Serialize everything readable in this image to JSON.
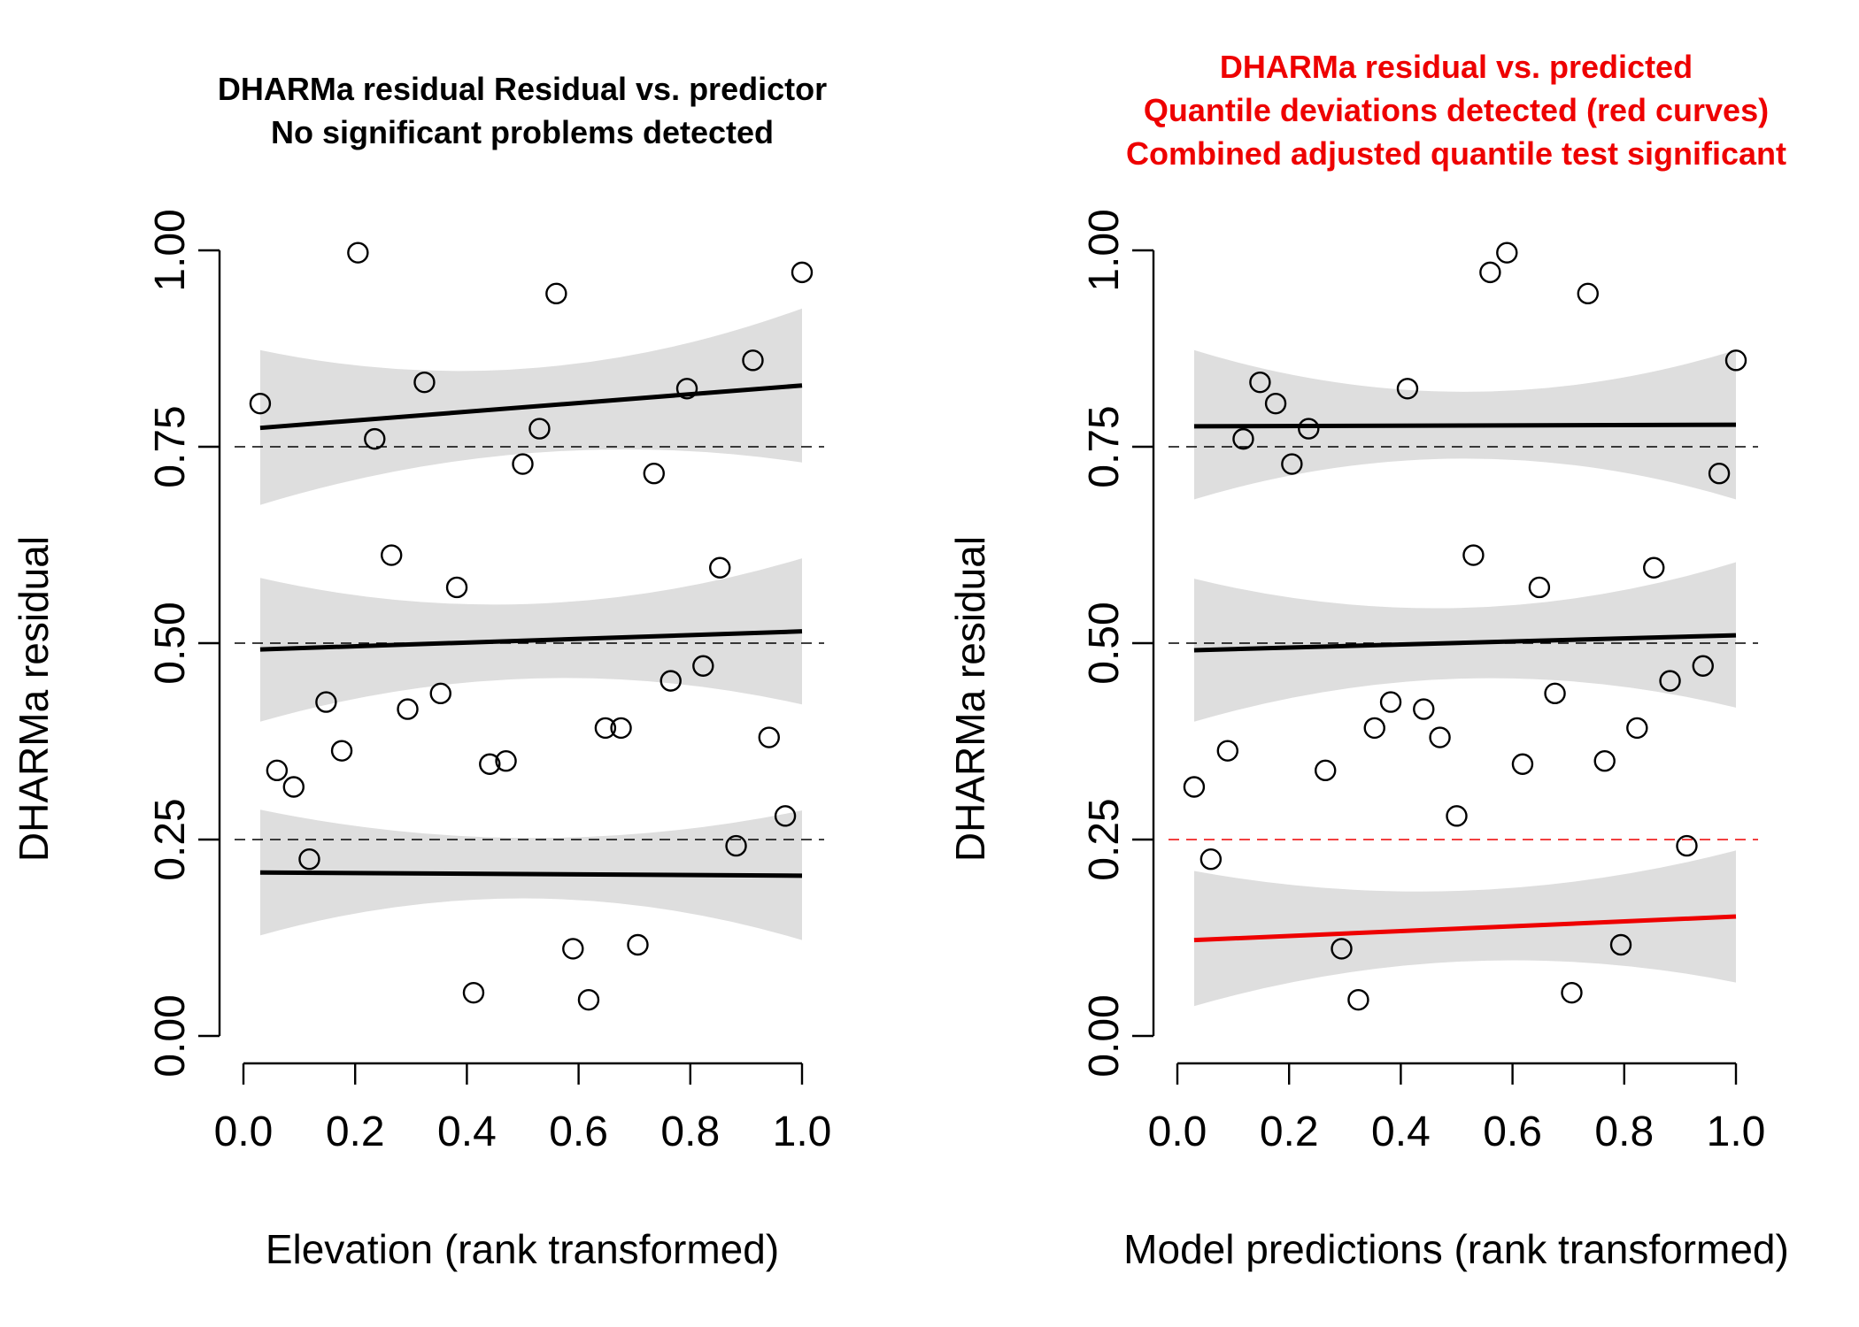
{
  "chart_data": [
    {
      "type": "scatter",
      "title": [
        "DHARMa residual Residual vs. predictor",
        "No significant problems detected"
      ],
      "title_color": "#000000",
      "xlabel": "Elevation (rank transformed)",
      "ylabel": "DHARMa residual",
      "xlim": [
        0,
        1
      ],
      "ylim": [
        0,
        1
      ],
      "xticks": [
        "0.0",
        "0.2",
        "0.4",
        "0.6",
        "0.8",
        "1.0"
      ],
      "yticks": [
        "0.00",
        "0.25",
        "0.50",
        "0.75",
        "1.00"
      ],
      "reference_lines": [
        {
          "y": 0.25,
          "color": "#000000"
        },
        {
          "y": 0.5,
          "color": "#000000"
        },
        {
          "y": 0.75,
          "color": "#000000"
        }
      ],
      "quantile_fits": [
        {
          "quantile": 0.25,
          "x": [
            0.03,
            1.0
          ],
          "y": [
            0.208,
            0.204
          ],
          "lower": [
            0.128,
            0.122
          ],
          "upper": [
            0.288,
            0.287
          ],
          "mid_band": [
            0.175,
            0.252
          ],
          "color": "#000000"
        },
        {
          "quantile": 0.5,
          "x": [
            0.03,
            1.0
          ],
          "y": [
            0.492,
            0.515
          ],
          "lower": [
            0.4,
            0.422
          ],
          "upper": [
            0.583,
            0.608
          ],
          "mid_band": [
            0.455,
            0.55
          ],
          "color": "#000000"
        },
        {
          "quantile": 0.75,
          "x": [
            0.03,
            1.0
          ],
          "y": [
            0.774,
            0.828
          ],
          "lower": [
            0.676,
            0.73
          ],
          "upper": [
            0.873,
            0.926
          ],
          "mid_band": [
            0.742,
            0.85
          ],
          "color": "#000000"
        }
      ],
      "points": {
        "x": [
          0.03,
          0.06,
          0.09,
          0.118,
          0.148,
          0.176,
          0.205,
          0.235,
          0.265,
          0.294,
          0.324,
          0.353,
          0.382,
          0.412,
          0.441,
          0.47,
          0.5,
          0.53,
          0.56,
          0.59,
          0.618,
          0.648,
          0.676,
          0.706,
          0.735,
          0.765,
          0.794,
          0.823,
          0.853,
          0.882,
          0.912,
          0.941,
          0.97,
          1.0
        ],
        "y": [
          0.805,
          0.338,
          0.317,
          0.225,
          0.425,
          0.363,
          0.997,
          0.76,
          0.612,
          0.416,
          0.832,
          0.436,
          0.571,
          0.055,
          0.346,
          0.35,
          0.728,
          0.773,
          0.945,
          0.111,
          0.046,
          0.392,
          0.392,
          0.116,
          0.716,
          0.452,
          0.824,
          0.471,
          0.596,
          0.242,
          0.86,
          0.38,
          0.28,
          0.972
        ]
      }
    },
    {
      "type": "scatter",
      "title": [
        "DHARMa residual vs. predicted",
        "Quantile deviations detected (red curves)",
        "Combined adjusted quantile test significant"
      ],
      "title_color": "#ee0000",
      "xlabel": "Model predictions (rank transformed)",
      "ylabel": "DHARMa residual",
      "xlim": [
        0,
        1
      ],
      "ylim": [
        0,
        1
      ],
      "xticks": [
        "0.0",
        "0.2",
        "0.4",
        "0.6",
        "0.8",
        "1.0"
      ],
      "yticks": [
        "0.00",
        "0.25",
        "0.50",
        "0.75",
        "1.00"
      ],
      "reference_lines": [
        {
          "y": 0.25,
          "color": "#ee0000"
        },
        {
          "y": 0.5,
          "color": "#000000"
        },
        {
          "y": 0.75,
          "color": "#000000"
        }
      ],
      "quantile_fits": [
        {
          "quantile": 0.25,
          "x": [
            0.03,
            1.0
          ],
          "y": [
            0.122,
            0.152
          ],
          "lower": [
            0.038,
            0.068
          ],
          "upper": [
            0.21,
            0.236
          ],
          "mid_band": [
            0.095,
            0.185
          ],
          "color": "#ee0000"
        },
        {
          "quantile": 0.5,
          "x": [
            0.03,
            1.0
          ],
          "y": [
            0.491,
            0.51
          ],
          "lower": [
            0.4,
            0.418
          ],
          "upper": [
            0.582,
            0.603
          ],
          "mid_band": [
            0.455,
            0.545
          ],
          "color": "#000000"
        },
        {
          "quantile": 0.75,
          "x": [
            0.03,
            1.0
          ],
          "y": [
            0.776,
            0.778
          ],
          "lower": [
            0.683,
            0.683
          ],
          "upper": [
            0.873,
            0.873
          ],
          "mid_band": [
            0.735,
            0.82
          ],
          "color": "#000000"
        }
      ],
      "points": {
        "x": [
          0.03,
          0.06,
          0.09,
          0.118,
          0.148,
          0.176,
          0.205,
          0.235,
          0.265,
          0.294,
          0.324,
          0.353,
          0.382,
          0.412,
          0.441,
          0.47,
          0.5,
          0.53,
          0.56,
          0.59,
          0.618,
          0.648,
          0.676,
          0.706,
          0.735,
          0.765,
          0.794,
          0.823,
          0.853,
          0.882,
          0.912,
          0.941,
          0.97,
          1.0
        ],
        "y": [
          0.317,
          0.225,
          0.363,
          0.76,
          0.832,
          0.805,
          0.728,
          0.773,
          0.338,
          0.111,
          0.046,
          0.392,
          0.425,
          0.824,
          0.416,
          0.38,
          0.28,
          0.612,
          0.972,
          0.997,
          0.346,
          0.571,
          0.436,
          0.055,
          0.945,
          0.35,
          0.116,
          0.392,
          0.596,
          0.452,
          0.242,
          0.471,
          0.716,
          0.86
        ]
      }
    }
  ]
}
